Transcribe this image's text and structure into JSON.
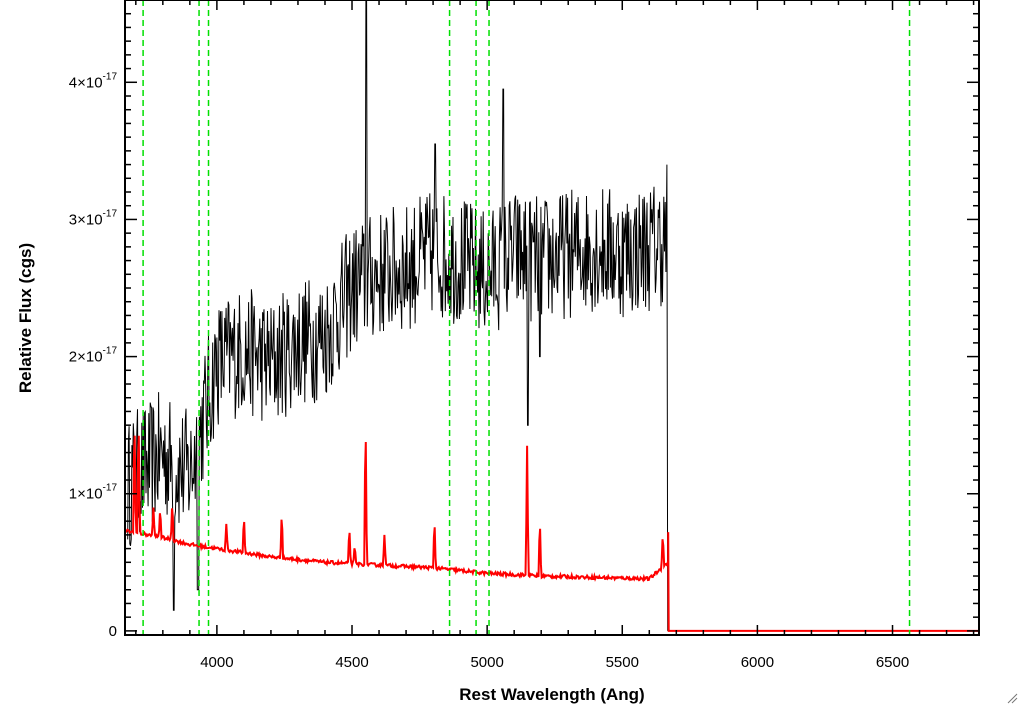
{
  "chart_data": {
    "type": "line",
    "title": "",
    "xlabel": "Rest Wavelength (Ang)",
    "ylabel": "Relative Flux (cgs)",
    "xlim": [
      3660,
      6820
    ],
    "ylim": [
      -3e-19,
      4.6e-17
    ],
    "x_ticks": [
      {
        "value": 4000,
        "label": "4000"
      },
      {
        "value": 4500,
        "label": "4500"
      },
      {
        "value": 5000,
        "label": "5000"
      },
      {
        "value": 5500,
        "label": "5500"
      },
      {
        "value": 6000,
        "label": "6000"
      },
      {
        "value": 6500,
        "label": "6500"
      }
    ],
    "y_ticks": [
      {
        "value": 0,
        "label": "0",
        "exp": ""
      },
      {
        "value": 1e-17,
        "label": "1×10",
        "exp": "-17"
      },
      {
        "value": 2e-17,
        "label": "2×10",
        "exp": "-17"
      },
      {
        "value": 3e-17,
        "label": "3×10",
        "exp": "-17"
      },
      {
        "value": 4e-17,
        "label": "4×10",
        "exp": "-17"
      }
    ],
    "grid": false,
    "reference_lines": [
      3727,
      3934,
      3969,
      4861,
      4959,
      5007,
      6563
    ],
    "series": [
      {
        "color": "#000000",
        "style": "noisy-spectrum",
        "x": [
          3670,
          3700,
          3750,
          3800,
          3850,
          3900,
          3950,
          4000,
          4100,
          4200,
          4300,
          4400,
          4500,
          4600,
          4700,
          4800,
          4900,
          5000,
          5100,
          5200,
          5300,
          5400,
          5500,
          5600,
          5665
        ],
        "y": [
          1.05e-17,
          1.15e-17,
          1.2e-17,
          1.3e-17,
          1.2e-17,
          1.15e-17,
          1.55e-17,
          1.95e-17,
          2.05e-17,
          1.95e-17,
          2.1e-17,
          2.15e-17,
          2.5e-17,
          2.6e-17,
          2.65e-17,
          2.75e-17,
          2.7e-17,
          2.6e-17,
          2.75e-17,
          2.7e-17,
          2.75e-17,
          2.8e-17,
          2.75e-17,
          2.8e-17,
          2.85e-17
        ],
        "features": [
          {
            "x": 4552,
            "y": 4.6e-17
          },
          {
            "x": 4808,
            "y": 3.55e-17
          },
          {
            "x": 5060,
            "y": 3.95e-17
          },
          {
            "x": 5150,
            "y": 1.5e-17
          },
          {
            "x": 5195,
            "y": 2e-17
          },
          {
            "x": 3840,
            "y": 1.5e-18
          },
          {
            "x": 3930,
            "y": 3e-18
          }
        ]
      },
      {
        "color": "#ff0000",
        "style": "model",
        "x": [
          3660,
          3800,
          3900,
          4000,
          4200,
          4400,
          4600,
          4800,
          5000,
          5200,
          5400,
          5600,
          5670,
          5672,
          5680,
          6820
        ],
        "y": [
          7.3e-18,
          6.8e-18,
          6.3e-18,
          6e-18,
          5.4e-18,
          5e-18,
          4.8e-18,
          4.6e-18,
          4.2e-18,
          4e-18,
          3.9e-18,
          3.8e-18,
          5e-18,
          0.0,
          0.0,
          0.0
        ],
        "lines": [
          {
            "x": 3695,
            "h": 1.6e-17
          },
          {
            "x": 3710,
            "h": 1.6e-17
          },
          {
            "x": 3765,
            "h": 9e-18
          },
          {
            "x": 3790,
            "h": 9e-18
          },
          {
            "x": 3835,
            "h": 9.5e-18
          },
          {
            "x": 4035,
            "h": 7.8e-18
          },
          {
            "x": 4100,
            "h": 8.5e-18
          },
          {
            "x": 4240,
            "h": 8.8e-18
          },
          {
            "x": 4490,
            "h": 7.7e-18
          },
          {
            "x": 4510,
            "h": 6.3e-18
          },
          {
            "x": 4550,
            "h": 1.6e-17
          },
          {
            "x": 4620,
            "h": 7e-18
          },
          {
            "x": 4805,
            "h": 8.3e-18
          },
          {
            "x": 5148,
            "h": 1.35e-17
          },
          {
            "x": 5195,
            "h": 8.3e-18
          },
          {
            "x": 5650,
            "h": 7.2e-18
          }
        ]
      }
    ]
  }
}
